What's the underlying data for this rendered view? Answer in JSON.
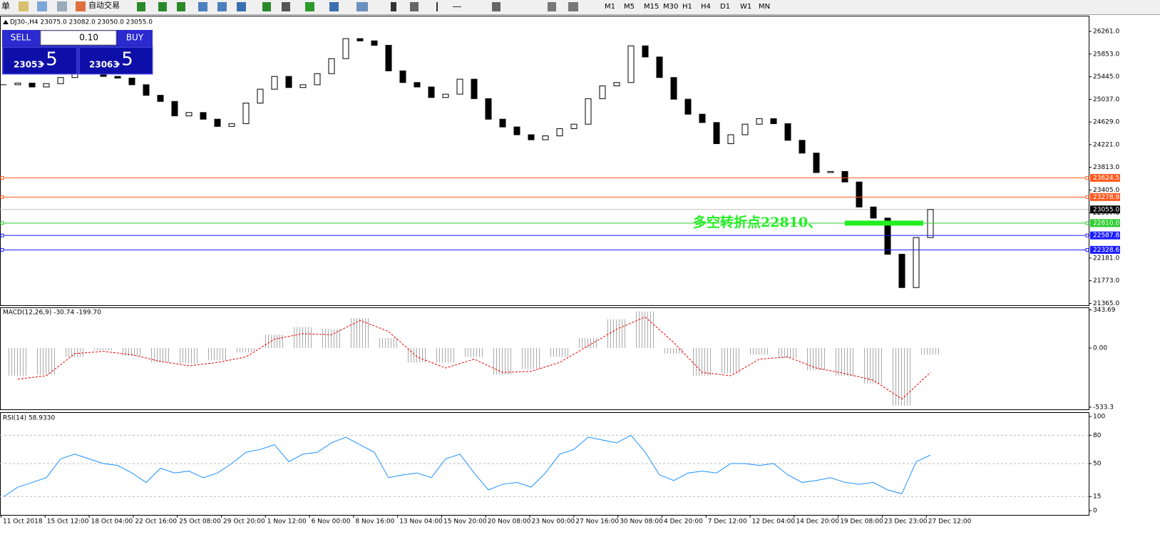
{
  "toolbar": {
    "menu": "单",
    "auto_trade": "自动交易",
    "timeframes": [
      "M1",
      "M5",
      "M15",
      "M30",
      "H1",
      "H4",
      "D1",
      "W1",
      "MN"
    ]
  },
  "trade_panel": {
    "sell": "SELL",
    "buy": "BUY",
    "lots": "0.10",
    "sell_price": "23053",
    "sell_pips": ".5",
    "buy_price": "23063",
    "buy_pips": ".5"
  },
  "price_chart": {
    "title": "DJ30-,H4  23075.0 23082.0 23050.0 23055.0",
    "ylim": [
      21332,
      26543
    ],
    "yticks": [
      {
        "value": 26261,
        "label": "26261.0"
      },
      {
        "value": 25853,
        "label": "25853.0"
      },
      {
        "value": 25445,
        "label": "25445.0"
      },
      {
        "value": 25037,
        "label": "25037.0"
      },
      {
        "value": 24629,
        "label": "24629.0"
      },
      {
        "value": 24221,
        "label": "24221.0"
      },
      {
        "value": 23813,
        "label": "23813.0"
      },
      {
        "value": 23405,
        "label": "23405.0"
      },
      {
        "value": 22997,
        "label": "22997.0"
      },
      {
        "value": 22589,
        "label": "22589.0"
      },
      {
        "value": 22181,
        "label": "22181.0"
      },
      {
        "value": 21773,
        "label": "21773.0"
      },
      {
        "value": 21365,
        "label": "21365.0"
      }
    ],
    "levels": [
      {
        "value": 23624.5,
        "label": "23624.5",
        "color": "#ff5a1f"
      },
      {
        "value": 23278.9,
        "label": "23278.9",
        "color": "#ff5a1f"
      },
      {
        "value": 22810,
        "label": "22810.0",
        "color": "#2ecc2e"
      },
      {
        "value": 22587.8,
        "label": "22587.8",
        "color": "#1a1aff"
      },
      {
        "value": 22328.6,
        "label": "22328.6",
        "color": "#1a1aff"
      }
    ],
    "current_price": {
      "value": 23055,
      "label": "23055.0"
    },
    "annotation": "多空转折点22810、",
    "closes": [
      25300,
      25330,
      25260,
      25320,
      25430,
      25560,
      25490,
      25450,
      25420,
      25300,
      25110,
      25000,
      24740,
      24800,
      24680,
      24550,
      24600,
      24970,
      25220,
      25450,
      25250,
      25300,
      25500,
      25770,
      26130,
      26090,
      26010,
      25550,
      25340,
      25260,
      25070,
      25130,
      25400,
      25050,
      24680,
      24540,
      24400,
      24310,
      24380,
      24510,
      24590,
      25050,
      25280,
      25340,
      26000,
      25800,
      25430,
      25040,
      24770,
      24620,
      24240,
      24400,
      24590,
      24690,
      24600,
      24300,
      24070,
      23720,
      23740,
      23550,
      23100,
      22900,
      22250,
      21650,
      22550,
      23055
    ]
  },
  "macd": {
    "label": "MACD(12,26,9) -30.74 -199.70",
    "ylim": [
      -553,
      367
    ],
    "yticks": [
      343.69,
      {
        "value": 0,
        "label": "0.00"
      },
      -533.3
    ],
    "histogram": [
      -250,
      -240,
      -80,
      -20,
      -70,
      -130,
      -140,
      -110,
      -40,
      120,
      190,
      170,
      270,
      90,
      -130,
      -130,
      -80,
      -240,
      -190,
      -80,
      90,
      260,
      330,
      -50,
      -250,
      -230,
      -60,
      -90,
      -200,
      -250,
      -320,
      -520,
      -60
    ],
    "signal": [
      -280,
      -250,
      -50,
      -30,
      -60,
      -120,
      -160,
      -130,
      -80,
      80,
      130,
      120,
      250,
      150,
      -80,
      -180,
      -100,
      -220,
      -210,
      -130,
      20,
      170,
      280,
      50,
      -220,
      -250,
      -100,
      -80,
      -180,
      -230,
      -290,
      -460,
      -220
    ]
  },
  "rsi": {
    "label": "RSI(14) 58.9330",
    "ylim": [
      -4.5,
      104.5
    ],
    "yticks": [
      100,
      80,
      50,
      15,
      0
    ],
    "levels": [
      80,
      50,
      15
    ],
    "values": [
      15,
      25,
      30,
      35,
      55,
      60,
      55,
      50,
      48,
      40,
      30,
      45,
      40,
      42,
      35,
      40,
      50,
      62,
      65,
      70,
      52,
      60,
      62,
      72,
      78,
      70,
      62,
      35,
      38,
      40,
      35,
      55,
      60,
      40,
      22,
      28,
      30,
      25,
      40,
      60,
      65,
      78,
      75,
      72,
      80,
      62,
      38,
      32,
      40,
      42,
      40,
      50,
      50,
      48,
      50,
      38,
      30,
      32,
      35,
      30,
      28,
      30,
      22,
      18,
      52,
      59
    ]
  },
  "time_axis": {
    "labels": [
      "11 Oct 2018",
      "15 Oct 12:00",
      "18 Oct 04:00",
      "22 Oct 16:00",
      "25 Oct 08:00",
      "29 Oct 20:00",
      "1 Nov 12:00",
      "6 Nov 00:00",
      "8 Nov 16:00",
      "13 Nov 04:00",
      "15 Nov 20:00",
      "20 Nov 08:00",
      "23 Nov 00:00",
      "27 Nov 16:00",
      "30 Nov 08:00",
      "4 Dec 20:00",
      "7 Dec 12:00",
      "12 Dec 04:00",
      "14 Dec 20:00",
      "19 Dec 08:00",
      "23 Dec 23:00",
      "27 Dec 12:00"
    ]
  }
}
